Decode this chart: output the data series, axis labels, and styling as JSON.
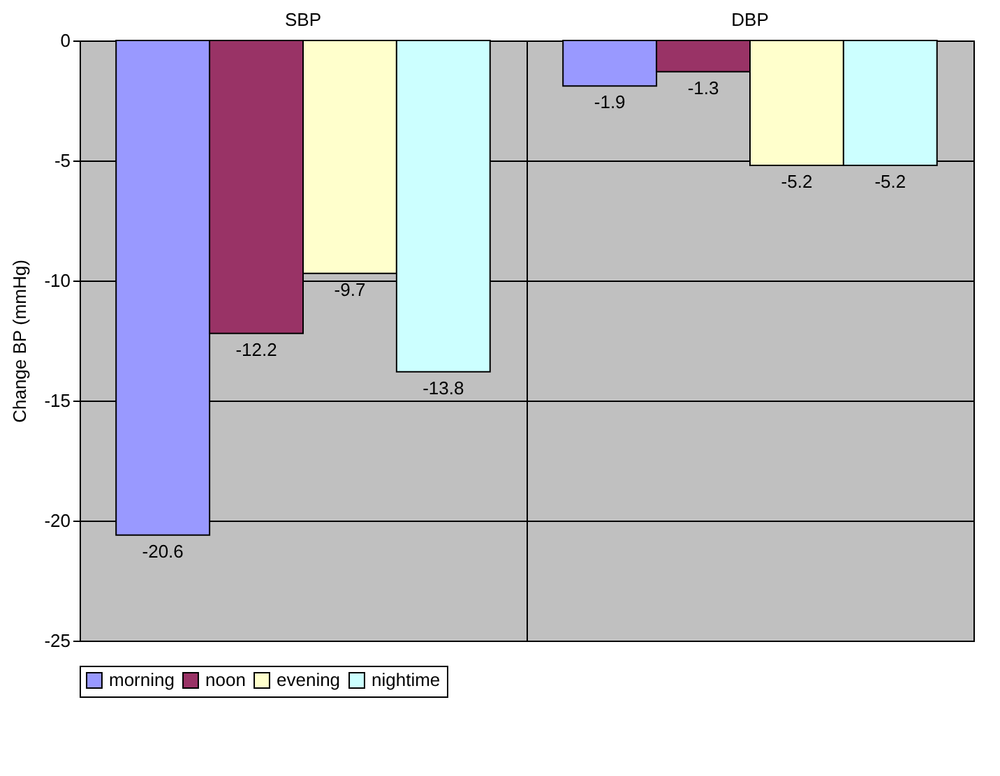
{
  "chart_data": {
    "type": "bar",
    "ylabel": "Change BP (mmHg)",
    "categories": [
      "SBP",
      "DBP"
    ],
    "series": [
      {
        "name": "morning",
        "color": "#9999ff",
        "values": [
          -20.6,
          -1.9
        ]
      },
      {
        "name": "noon",
        "color": "#993366",
        "values": [
          -12.2,
          -1.3
        ]
      },
      {
        "name": "evening",
        "color": "#ffffcc",
        "values": [
          -9.7,
          -5.2
        ]
      },
      {
        "name": "nightime",
        "color": "#ccffff",
        "values": [
          -13.8,
          -5.2
        ]
      }
    ],
    "ylim": [
      -25,
      0
    ],
    "yticks": [
      -25,
      -20,
      -15,
      -10,
      -5,
      0
    ],
    "grid": "y",
    "legend": "bottom",
    "data_labels": true
  }
}
